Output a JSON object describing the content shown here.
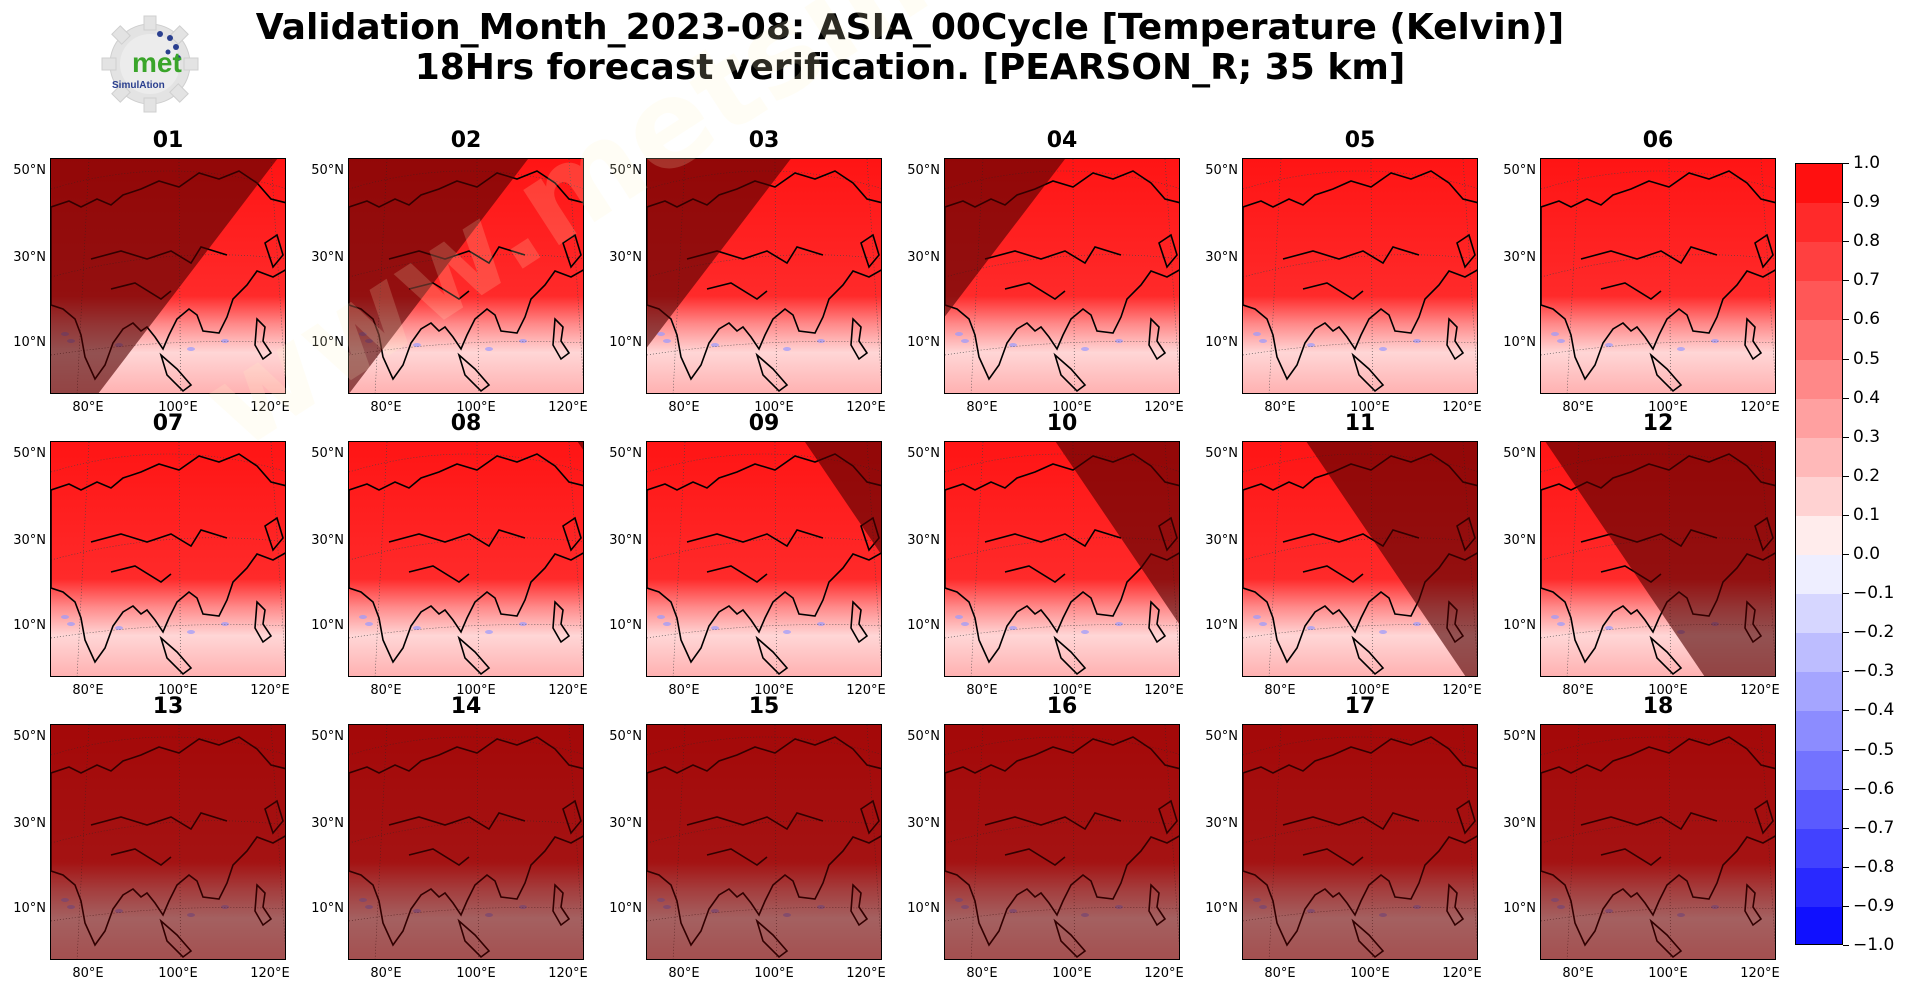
{
  "title": {
    "line1": "Validation_Month_2023-08: ASIA_00Cycle [Temperature (Kelvin)]",
    "line2": "18Hrs forecast verification.  [PEARSON_R; 35 km]"
  },
  "logo": {
    "text": "met",
    "subtext": "SimulAtion"
  },
  "watermark": "www.metsimulation.com",
  "axes": {
    "lat_labels": [
      "50°N",
      "30°N",
      "10°N"
    ],
    "lon_labels": [
      "80°E",
      "100°E",
      "120°E"
    ]
  },
  "panels": [
    {
      "label": "01",
      "night_edge": 0.45,
      "shade": "left"
    },
    {
      "label": "02",
      "night_edge": 0.25,
      "shade": "left"
    },
    {
      "label": "03",
      "night_edge": 0.1,
      "shade": "left"
    },
    {
      "label": "04",
      "night_edge": 0.0,
      "shade": "left"
    },
    {
      "label": "05",
      "night_edge": 0.0,
      "shade": "none"
    },
    {
      "label": "06",
      "night_edge": 0.0,
      "shade": "none"
    },
    {
      "label": "07",
      "night_edge": 0.9,
      "shade": "right"
    },
    {
      "label": "08",
      "night_edge": 0.8,
      "shade": "right"
    },
    {
      "label": "09",
      "night_edge": 0.5,
      "shade": "right"
    },
    {
      "label": "10",
      "night_edge": 0.3,
      "shade": "right"
    },
    {
      "label": "11",
      "night_edge": 0.1,
      "shade": "right"
    },
    {
      "label": "12",
      "night_edge": -0.15,
      "shade": "right"
    },
    {
      "label": "13",
      "night_edge": 0.0,
      "shade": "full"
    },
    {
      "label": "14",
      "night_edge": 0.0,
      "shade": "full"
    },
    {
      "label": "15",
      "night_edge": 0.0,
      "shade": "full"
    },
    {
      "label": "16",
      "night_edge": 0.0,
      "shade": "full"
    },
    {
      "label": "17",
      "night_edge": 0.0,
      "shade": "full"
    },
    {
      "label": "18",
      "night_edge": 0.0,
      "shade": "full"
    }
  ],
  "colorbar": {
    "min": -1.0,
    "max": 1.0,
    "step": 0.1,
    "ticks": [
      "1.0",
      "0.9",
      "0.8",
      "0.7",
      "0.6",
      "0.5",
      "0.4",
      "0.3",
      "0.2",
      "0.1",
      "0.0",
      "−0.1",
      "−0.2",
      "−0.3",
      "−0.4",
      "−0.5",
      "−0.6",
      "−0.7",
      "−0.8",
      "−0.9",
      "−1.0"
    ],
    "colors": [
      "#ff1010",
      "#ff2a2a",
      "#ff4040",
      "#ff5757",
      "#ff6f6f",
      "#ff8888",
      "#ffa0a0",
      "#ffb9b9",
      "#ffd2d2",
      "#ffecec",
      "#eeeeff",
      "#d6d6ff",
      "#bdbdff",
      "#a5a5ff",
      "#8c8cff",
      "#7373ff",
      "#5a5aff",
      "#4242ff",
      "#2929ff",
      "#1010ff"
    ]
  }
}
